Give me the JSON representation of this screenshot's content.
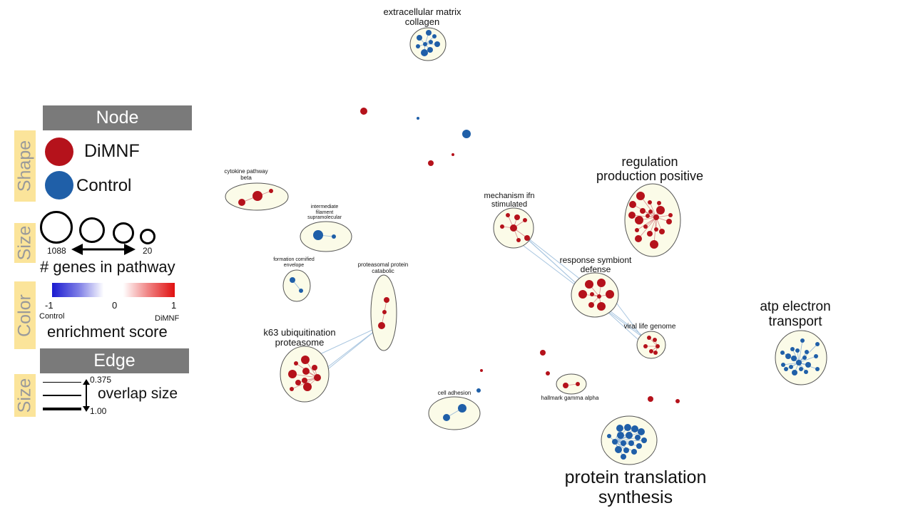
{
  "legend": {
    "node_header": "Node",
    "edge_header": "Edge",
    "shape_side": "Shape",
    "size_side": "Size",
    "color_side": "Color",
    "edge_size_side": "Size",
    "shape_dimnf": "DiMNF",
    "shape_control": "Control",
    "size_max": "1088",
    "size_min": "20",
    "size_caption": "# genes in pathway",
    "color_min": "-1",
    "color_mid": "0",
    "color_max": "1",
    "color_left_label": "Control",
    "color_right_label": "DiMNF",
    "color_caption": "enrichment score",
    "edge_top": "0.375",
    "edge_bottom": "1.00",
    "edge_caption": "overlap size",
    "colors": {
      "dimnf": "#b5121b",
      "control": "#1f5fa8",
      "header": "#7a7a7a",
      "side": "#fbe49a"
    }
  },
  "clusters": [
    {
      "label_lines": [
        "extracellular matrix",
        "collagen"
      ],
      "font": 13
    },
    {
      "label_lines": [
        "cytokine pathway",
        "beta"
      ],
      "font": 8
    },
    {
      "label_lines": [
        "intermediate",
        "filament",
        "supramolecular"
      ],
      "font": 7
    },
    {
      "label_lines": [
        "formation cornified",
        "envelope"
      ],
      "font": 7
    },
    {
      "label_lines": [
        "proteasomal protein",
        "catabolic"
      ],
      "font": 8
    },
    {
      "label_lines": [
        "k63 ubiquitination",
        "proteasome"
      ],
      "font": 13
    },
    {
      "label_lines": [
        "cell adhesion"
      ],
      "font": 8
    },
    {
      "label_lines": [
        "mechanism ifn",
        "stimulated"
      ],
      "font": 11
    },
    {
      "label_lines": [
        "response symbiont",
        "defense"
      ],
      "font": 12
    },
    {
      "label_lines": [
        "viral life genome"
      ],
      "font": 10
    },
    {
      "label_lines": [
        "hallmark gamma alpha"
      ],
      "font": 8
    },
    {
      "label_lines": [
        "regulation",
        "production positive"
      ],
      "font": 18
    },
    {
      "label_lines": [
        "atp electron",
        "transport"
      ],
      "font": 19
    },
    {
      "label_lines": [
        "protein translation",
        "synthesis"
      ],
      "font": 25
    }
  ]
}
